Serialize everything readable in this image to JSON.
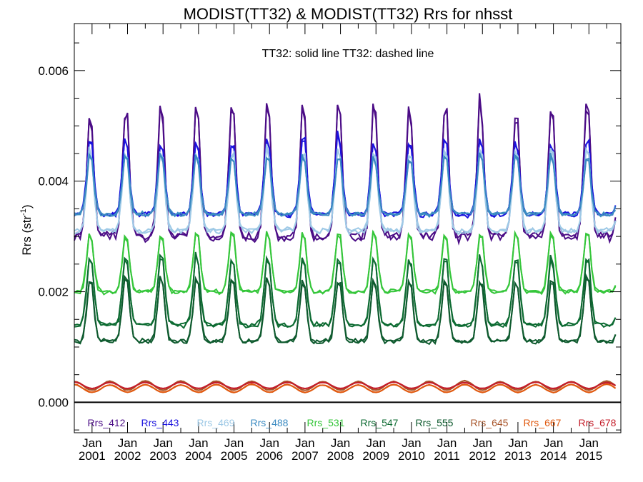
{
  "chart_data": {
    "type": "line",
    "title": "MODIST(TT32) & MODIST(TT32)  Rrs for nhsst",
    "ylabel": "Rrs (str",
    "ylabel_sup": "-1",
    "ylabel_close": ")",
    "annotation": "TT32: solid line   TT32: dashed line",
    "ylim": [
      -0.00055,
      0.00685
    ],
    "yticks": [
      "0.006",
      "0.004",
      "0.002",
      "0.000"
    ],
    "ytick_values": [
      0.006,
      0.004,
      0.002,
      0.0
    ],
    "xlim": [
      2000.5,
      2015.9
    ],
    "x_month_label": "Jan",
    "x_years": [
      "2001",
      "2002",
      "2003",
      "2004",
      "2005",
      "2006",
      "2007",
      "2008",
      "2009",
      "2010",
      "2011",
      "2012",
      "2013",
      "2014",
      "2015"
    ],
    "zero_line": 0.0,
    "series": [
      {
        "name": "Rrs_412",
        "color": "#4b0c86",
        "min": 0.003,
        "max": 0.0054,
        "peak_frac": 0.92,
        "spike": 0.0002
      },
      {
        "name": "Rrs_443",
        "color": "#1a12de",
        "min": 0.0034,
        "max": 0.0048,
        "peak_frac": 0.92,
        "spike": 0.0001
      },
      {
        "name": "Rrs_469",
        "color": "#9ec9e6",
        "min": 0.0031,
        "max": 0.0046,
        "peak_frac": 0.92,
        "spike": 0.0001
      },
      {
        "name": "Rrs_488",
        "color": "#3b8bc2",
        "min": 0.0034,
        "max": 0.0045,
        "peak_frac": 0.92,
        "spike": 0.0
      },
      {
        "name": "Rrs_531",
        "color": "#35c63a",
        "min": 0.002,
        "max": 0.0031,
        "peak_frac": 0.92,
        "spike": 0.0
      },
      {
        "name": "Rrs_547",
        "color": "#0d6b32",
        "min": 0.0014,
        "max": 0.0027,
        "peak_frac": 0.92,
        "spike": 0.0
      },
      {
        "name": "Rrs_555",
        "color": "#0e5a2e",
        "min": 0.0011,
        "max": 0.0023,
        "peak_frac": 0.92,
        "spike": 0.0
      },
      {
        "name": "Rrs_645",
        "color": "#a8552a",
        "min": 0.00022,
        "max": 0.00038,
        "peak_frac": 0.5,
        "spike": 0.0
      },
      {
        "name": "Rrs_667",
        "color": "#e0590f",
        "min": 0.00018,
        "max": 0.00032,
        "peak_frac": 0.5,
        "spike": 0.0
      },
      {
        "name": "Rrs_678",
        "color": "#c41e2a",
        "min": 0.00025,
        "max": 0.00036,
        "peak_frac": 0.5,
        "spike": 0.0
      }
    ]
  }
}
